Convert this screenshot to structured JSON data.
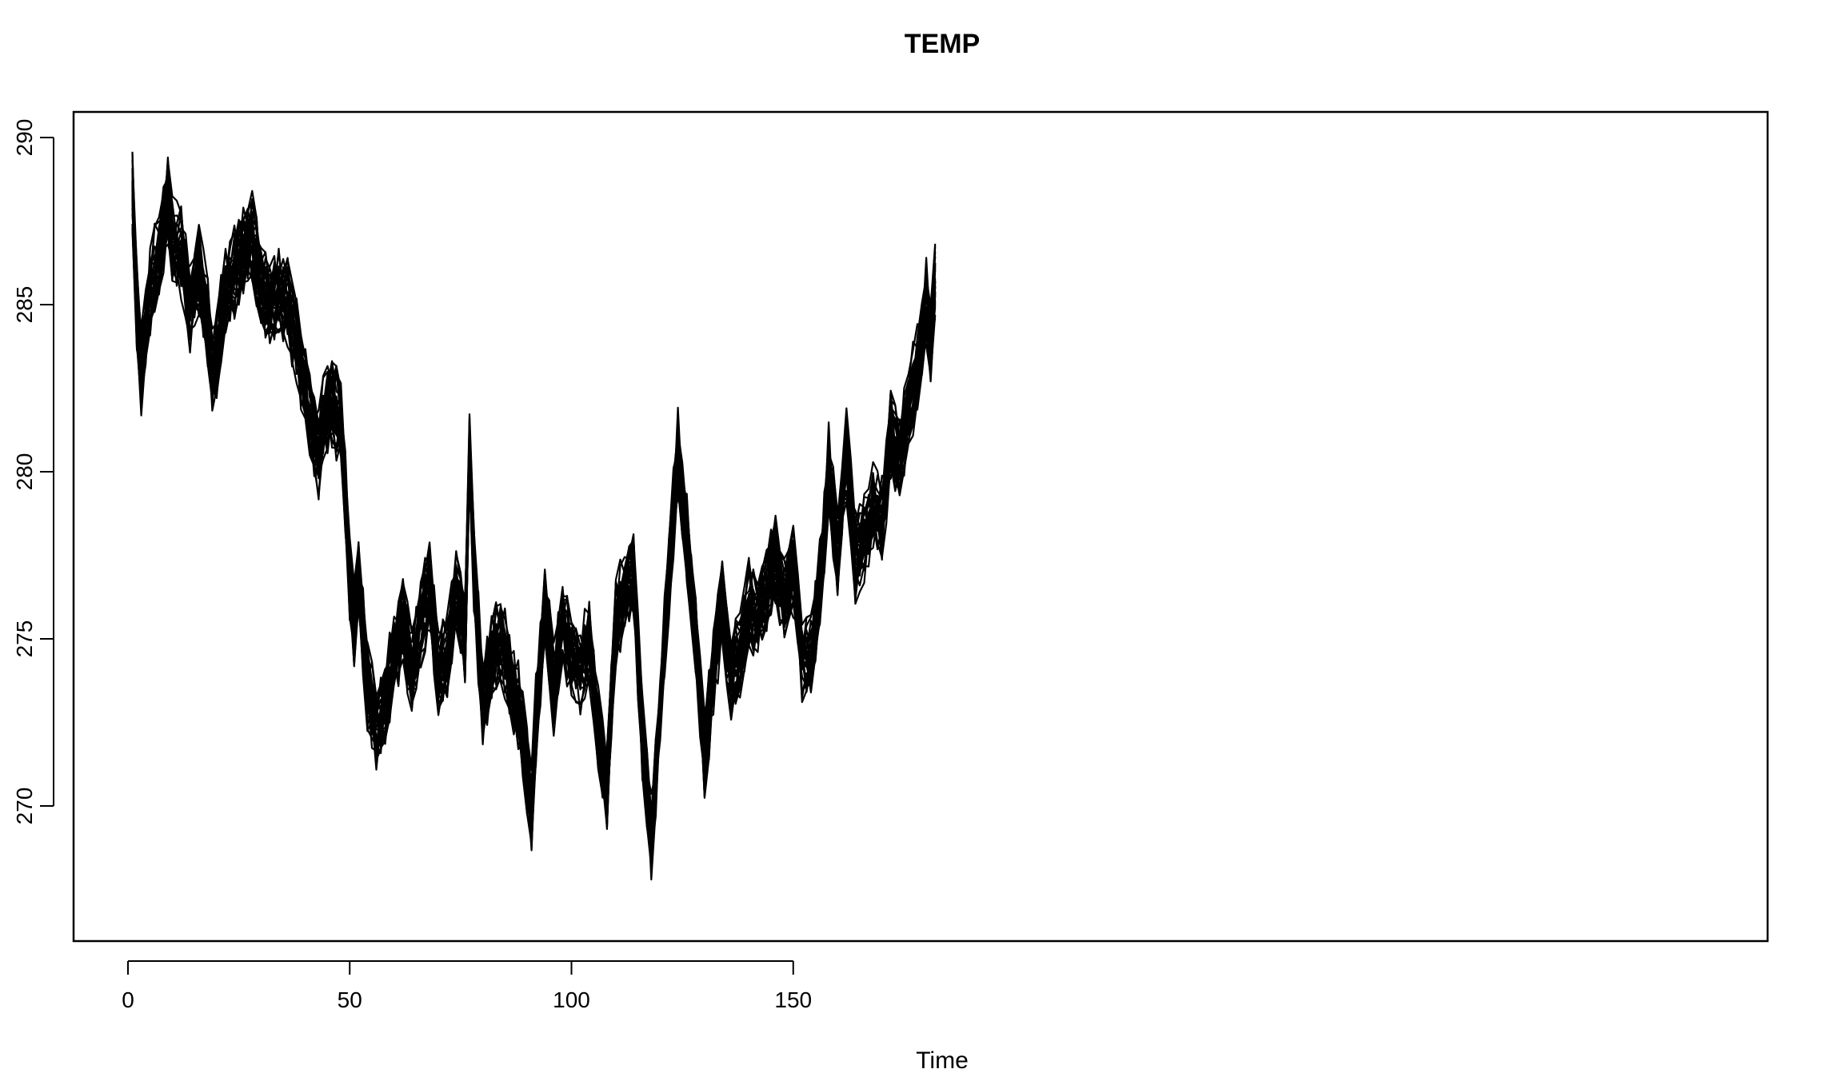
{
  "chart_data": {
    "type": "line",
    "title": "TEMP",
    "xlabel": "Time",
    "ylabel": "",
    "xlim": [
      1,
      182
    ],
    "ylim": [
      267,
      290
    ],
    "x_ticks": [
      0,
      50,
      100,
      150
    ],
    "y_ticks": [
      270,
      275,
      280,
      285,
      290
    ],
    "grid": false,
    "legend": "none",
    "line_color": "#000000",
    "series_count": 30,
    "ensemble_spread_estimate": 1.0,
    "series_mean": {
      "x": [
        1,
        2,
        3,
        5,
        7,
        9,
        10,
        12,
        14,
        16,
        18,
        19,
        20,
        22,
        24,
        26,
        28,
        30,
        32,
        34,
        36,
        38,
        40,
        42,
        43,
        44,
        46,
        48,
        50,
        51,
        52,
        54,
        56,
        58,
        60,
        62,
        64,
        66,
        68,
        70,
        72,
        74,
        76,
        77,
        78,
        80,
        82,
        84,
        86,
        88,
        90,
        91,
        92,
        94,
        96,
        98,
        100,
        102,
        104,
        106,
        108,
        110,
        112,
        114,
        116,
        118,
        120,
        122,
        124,
        126,
        128,
        130,
        132,
        134,
        136,
        138,
        140,
        142,
        144,
        146,
        148,
        150,
        152,
        154,
        156,
        158,
        160,
        162,
        164,
        166,
        168,
        170,
        172,
        174,
        176,
        178,
        180,
        181,
        182
      ],
      "values": [
        288.5,
        285.0,
        283.0,
        285.5,
        286.5,
        288.2,
        287.0,
        286.5,
        285.0,
        286.0,
        284.5,
        283.0,
        283.5,
        285.5,
        286.0,
        286.5,
        287.0,
        285.5,
        285.0,
        285.5,
        285.0,
        284.0,
        282.5,
        281.0,
        280.5,
        281.5,
        282.0,
        281.5,
        277.0,
        275.5,
        277.0,
        273.5,
        272.5,
        273.0,
        274.5,
        275.5,
        274.0,
        275.5,
        276.5,
        274.0,
        274.5,
        276.5,
        275.0,
        280.5,
        277.0,
        273.0,
        274.5,
        275.0,
        274.0,
        273.0,
        271.0,
        270.0,
        272.5,
        276.0,
        273.5,
        275.5,
        274.5,
        274.0,
        275.0,
        272.5,
        270.5,
        275.5,
        276.5,
        277.0,
        272.0,
        269.0,
        273.0,
        277.0,
        280.5,
        278.0,
        275.0,
        271.5,
        274.0,
        276.0,
        274.0,
        274.5,
        276.0,
        275.5,
        276.5,
        277.5,
        276.0,
        277.0,
        274.5,
        274.5,
        276.5,
        280.0,
        277.5,
        280.5,
        277.5,
        278.0,
        279.0,
        278.5,
        281.0,
        280.5,
        282.0,
        283.0,
        285.0,
        284.0,
        285.5
      ]
    }
  }
}
